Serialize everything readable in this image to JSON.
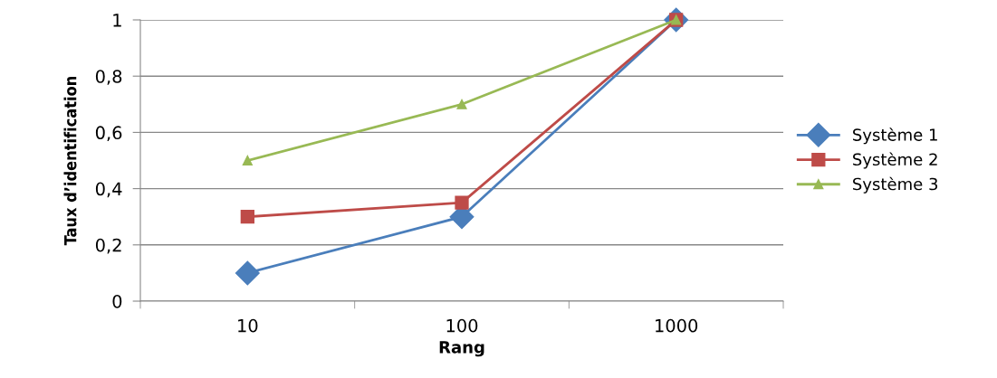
{
  "chart_data": {
    "type": "line",
    "xlabel": "Rang",
    "ylabel": "Taux d’identification",
    "categories": [
      "10",
      "100",
      "1000"
    ],
    "series": [
      {
        "name": "Système 1",
        "color": "#4a7ebb",
        "marker": "diamond",
        "values": [
          0.1,
          0.3,
          1
        ]
      },
      {
        "name": "Système 2",
        "color": "#be4b48",
        "marker": "square",
        "values": [
          0.3,
          0.35,
          1
        ]
      },
      {
        "name": "Système 3",
        "color": "#98b954",
        "marker": "triangle",
        "values": [
          0.5,
          0.7,
          1
        ]
      }
    ],
    "ylim": [
      0,
      1
    ],
    "yticks": [
      {
        "value": 0,
        "label": "0"
      },
      {
        "value": 0.2,
        "label": "0,2"
      },
      {
        "value": 0.4,
        "label": "0,4"
      },
      {
        "value": 0.6,
        "label": "0,6"
      },
      {
        "value": 0.8,
        "label": "0,8"
      },
      {
        "value": 1,
        "label": "1"
      }
    ],
    "grid": "y",
    "legend": "right",
    "line_style": "solid"
  }
}
